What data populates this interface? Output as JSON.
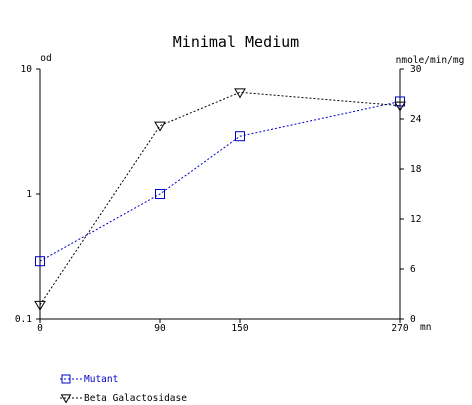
{
  "chart_data": {
    "type": "line",
    "title": "Minimal Medium",
    "x_unit": "mn",
    "x_ticks": [
      0,
      90,
      150,
      270
    ],
    "xlim": [
      0,
      270
    ],
    "y_left": {
      "label": "od",
      "scale": "log",
      "ylim": [
        0.1,
        10
      ],
      "ticks": [
        "0.1",
        "1",
        "10"
      ]
    },
    "y_right": {
      "label": "nmole/min/mg",
      "scale": "linear",
      "ylim": [
        0,
        30
      ],
      "ticks": [
        "0",
        "6",
        "12",
        "18",
        "24",
        "30"
      ]
    },
    "series": [
      {
        "name": "Mutant",
        "axis": "left",
        "marker": "square",
        "color": "#0000cc",
        "x": [
          0,
          90,
          150,
          270
        ],
        "values": [
          0.29,
          1.0,
          2.9,
          5.5
        ]
      },
      {
        "name": "Beta Galactosidase",
        "axis": "right",
        "marker": "triangle-down",
        "color": "#000000",
        "x": [
          0,
          90,
          150,
          270
        ],
        "values": [
          1.7,
          23.2,
          27.2,
          25.6
        ]
      }
    ]
  }
}
